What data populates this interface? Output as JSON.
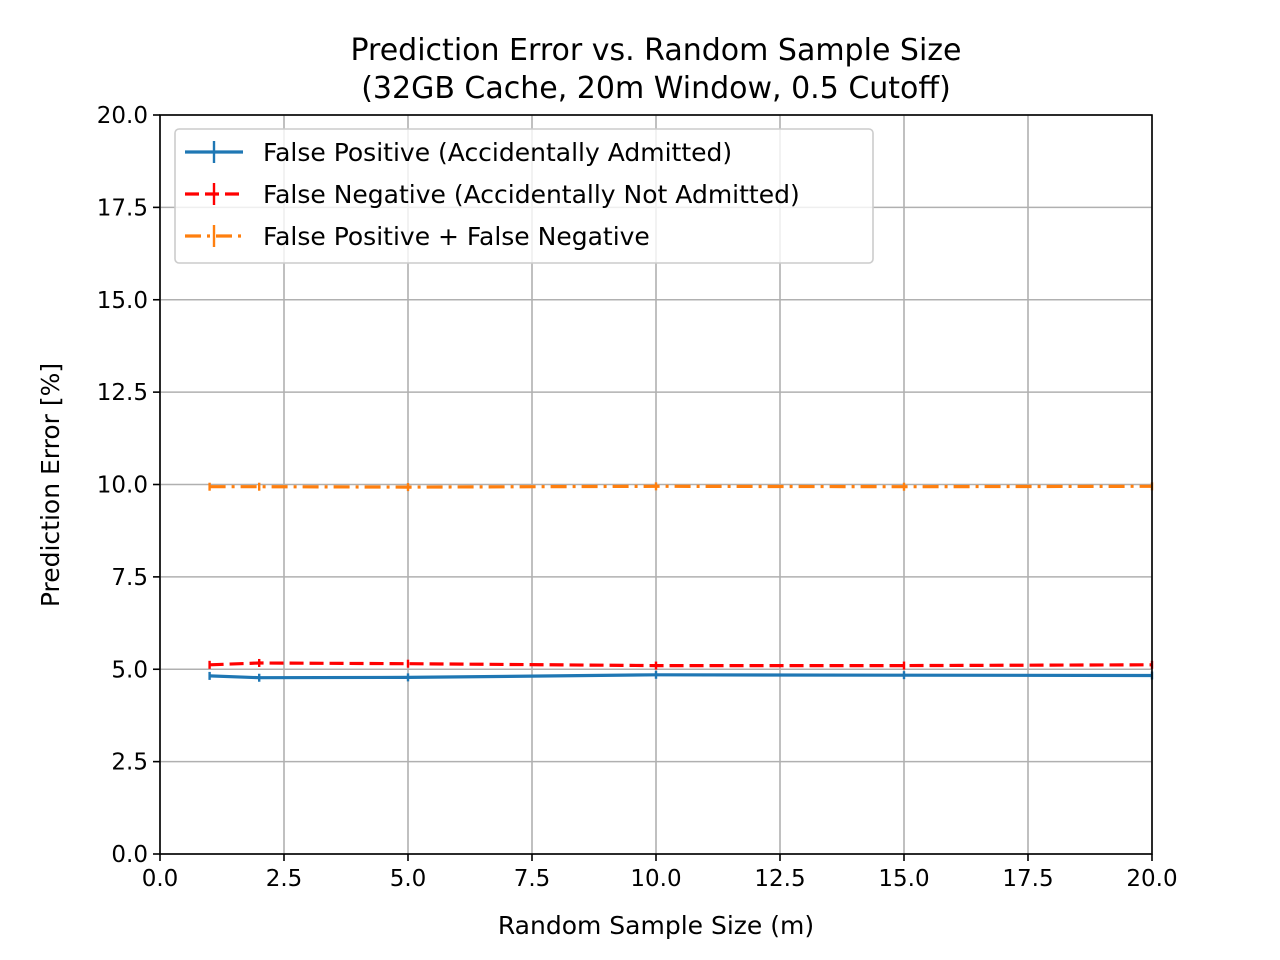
{
  "chart_data": {
    "type": "line",
    "title": "Prediction Error vs. Random Sample Size",
    "subtitle": "(32GB Cache, 20m Window, 0.5 Cutoff)",
    "xlabel": "Random Sample Size (m)",
    "ylabel": "Prediction Error [%]",
    "xlim": [
      0,
      20
    ],
    "ylim": [
      0,
      20
    ],
    "xticks": [
      "0.0",
      "2.5",
      "5.0",
      "7.5",
      "10.0",
      "12.5",
      "15.0",
      "17.5",
      "20.0"
    ],
    "yticks": [
      "0.0",
      "2.5",
      "5.0",
      "7.5",
      "10.0",
      "12.5",
      "15.0",
      "17.5",
      "20.0"
    ],
    "grid": true,
    "legend_position": "top-left",
    "x": [
      1,
      2,
      5,
      10,
      15,
      20
    ],
    "series": [
      {
        "name": "False Positive (Accidentally Admitted)",
        "color": "#1f77b4",
        "linestyle": "solid",
        "values": [
          4.82,
          4.77,
          4.78,
          4.85,
          4.84,
          4.83
        ]
      },
      {
        "name": "False Negative (Accidentally Not Admitted)",
        "color": "#ff0000",
        "linestyle": "dashed",
        "values": [
          5.12,
          5.17,
          5.15,
          5.1,
          5.1,
          5.12
        ]
      },
      {
        "name": "False Positive + False Negative",
        "color": "#ff7f0e",
        "linestyle": "dashdot",
        "values": [
          9.94,
          9.94,
          9.93,
          9.95,
          9.94,
          9.95
        ]
      }
    ]
  }
}
